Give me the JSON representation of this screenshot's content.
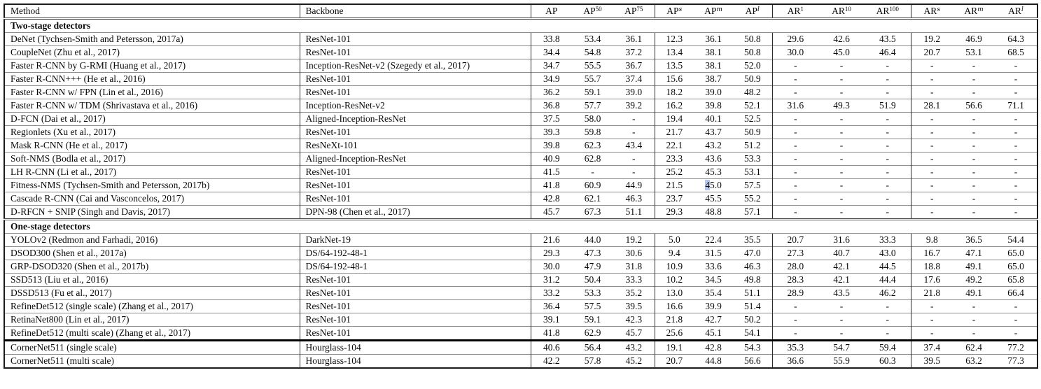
{
  "table": {
    "columns": [
      {
        "key": "method",
        "label": "Method",
        "sup": "",
        "align": "left"
      },
      {
        "key": "backbone",
        "label": "Backbone",
        "sup": "",
        "align": "left"
      },
      {
        "key": "ap",
        "label": "AP",
        "sup": ""
      },
      {
        "key": "ap50",
        "label": "AP",
        "sup": "50"
      },
      {
        "key": "ap75",
        "label": "AP",
        "sup": "75"
      },
      {
        "key": "ap-s",
        "label": "AP",
        "sup": "s"
      },
      {
        "key": "ap-m",
        "label": "AP",
        "sup": "m"
      },
      {
        "key": "ap-l",
        "label": "AP",
        "sup": "l"
      },
      {
        "key": "ar1",
        "label": "AR",
        "sup": "1"
      },
      {
        "key": "ar10",
        "label": "AR",
        "sup": "10"
      },
      {
        "key": "ar100",
        "label": "AR",
        "sup": "100"
      },
      {
        "key": "ar-s",
        "label": "AR",
        "sup": "s"
      },
      {
        "key": "ar-m",
        "label": "AR",
        "sup": "m"
      },
      {
        "key": "ar-l",
        "label": "AR",
        "sup": "l"
      }
    ],
    "sections": [
      {
        "title": "Two-stage detectors",
        "divider": "double",
        "rows": [
          [
            "DeNet (Tychsen-Smith and Petersson, 2017a)",
            "ResNet-101",
            "33.8",
            "53.4",
            "36.1",
            "12.3",
            "36.1",
            "50.8",
            "29.6",
            "42.6",
            "43.5",
            "19.2",
            "46.9",
            "64.3"
          ],
          [
            "CoupleNet (Zhu et al., 2017)",
            "ResNet-101",
            "34.4",
            "54.8",
            "37.2",
            "13.4",
            "38.1",
            "50.8",
            "30.0",
            "45.0",
            "46.4",
            "20.7",
            "53.1",
            "68.5"
          ],
          [
            "Faster R-CNN by G-RMI (Huang et al., 2017)",
            "Inception-ResNet-v2 (Szegedy et al., 2017)",
            "34.7",
            "55.5",
            "36.7",
            "13.5",
            "38.1",
            "52.0",
            "-",
            "-",
            "-",
            "-",
            "-",
            "-"
          ],
          [
            "Faster R-CNN+++ (He et al., 2016)",
            "ResNet-101",
            "34.9",
            "55.7",
            "37.4",
            "15.6",
            "38.7",
            "50.9",
            "-",
            "-",
            "-",
            "-",
            "-",
            "-"
          ],
          [
            "Faster R-CNN w/ FPN (Lin et al., 2016)",
            "ResNet-101",
            "36.2",
            "59.1",
            "39.0",
            "18.2",
            "39.0",
            "48.2",
            "-",
            "-",
            "-",
            "-",
            "-",
            "-"
          ],
          [
            "Faster R-CNN w/ TDM (Shrivastava et al., 2016)",
            "Inception-ResNet-v2",
            "36.8",
            "57.7",
            "39.2",
            "16.2",
            "39.8",
            "52.1",
            "31.6",
            "49.3",
            "51.9",
            "28.1",
            "56.6",
            "71.1"
          ],
          [
            "D-FCN (Dai et al., 2017)",
            "Aligned-Inception-ResNet",
            "37.5",
            "58.0",
            "-",
            "19.4",
            "40.1",
            "52.5",
            "-",
            "-",
            "-",
            "-",
            "-",
            "-"
          ],
          [
            "Regionlets (Xu et al., 2017)",
            "ResNet-101",
            "39.3",
            "59.8",
            "-",
            "21.7",
            "43.7",
            "50.9",
            "-",
            "-",
            "-",
            "-",
            "-",
            "-"
          ],
          [
            "Mask R-CNN (He et al., 2017)",
            "ResNeXt-101",
            "39.8",
            "62.3",
            "43.4",
            "22.1",
            "43.2",
            "51.2",
            "-",
            "-",
            "-",
            "-",
            "-",
            "-"
          ],
          [
            "Soft-NMS (Bodla et al., 2017)",
            "Aligned-Inception-ResNet",
            "40.9",
            "62.8",
            "-",
            "23.3",
            "43.6",
            "53.3",
            "-",
            "-",
            "-",
            "-",
            "-",
            "-"
          ],
          [
            "LH R-CNN (Li et al., 2017)",
            "ResNet-101",
            "41.5",
            "-",
            "-",
            "25.2",
            "45.3",
            "53.1",
            "-",
            "-",
            "-",
            "-",
            "-",
            "-"
          ],
          [
            "Fitness-NMS (Tychsen-Smith and Petersson, 2017b)",
            "ResNet-101",
            "41.8",
            "60.9",
            "44.9",
            "21.5",
            "45.0",
            "57.5",
            "-",
            "-",
            "-",
            "-",
            "-",
            "-"
          ],
          [
            "Cascade R-CNN (Cai and Vasconcelos, 2017)",
            "ResNet-101",
            "42.8",
            "62.1",
            "46.3",
            "23.7",
            "45.5",
            "55.2",
            "-",
            "-",
            "-",
            "-",
            "-",
            "-"
          ],
          [
            "D-RFCN + SNIP (Singh and Davis, 2017)",
            "DPN-98 (Chen et al., 2017)",
            "45.7",
            "67.3",
            "51.1",
            "29.3",
            "48.8",
            "57.1",
            "-",
            "-",
            "-",
            "-",
            "-",
            "-"
          ]
        ]
      },
      {
        "title": "One-stage detectors",
        "divider": "double",
        "rows": [
          [
            "YOLOv2 (Redmon and Farhadi, 2016)",
            "DarkNet-19",
            "21.6",
            "44.0",
            "19.2",
            "5.0",
            "22.4",
            "35.5",
            "20.7",
            "31.6",
            "33.3",
            "9.8",
            "36.5",
            "54.4"
          ],
          [
            "DSOD300 (Shen et al., 2017a)",
            "DS/64-192-48-1",
            "29.3",
            "47.3",
            "30.6",
            "9.4",
            "31.5",
            "47.0",
            "27.3",
            "40.7",
            "43.0",
            "16.7",
            "47.1",
            "65.0"
          ],
          [
            "GRP-DSOD320 (Shen et al., 2017b)",
            "DS/64-192-48-1",
            "30.0",
            "47.9",
            "31.8",
            "10.9",
            "33.6",
            "46.3",
            "28.0",
            "42.1",
            "44.5",
            "18.8",
            "49.1",
            "65.0"
          ],
          [
            "SSD513 (Liu et al., 2016)",
            "ResNet-101",
            "31.2",
            "50.4",
            "33.3",
            "10.2",
            "34.5",
            "49.8",
            "28.3",
            "42.1",
            "44.4",
            "17.6",
            "49.2",
            "65.8"
          ],
          [
            "DSSD513 (Fu et al., 2017)",
            "ResNet-101",
            "33.2",
            "53.3",
            "35.2",
            "13.0",
            "35.4",
            "51.1",
            "28.9",
            "43.5",
            "46.2",
            "21.8",
            "49.1",
            "66.4"
          ],
          [
            "RefineDet512 (single scale) (Zhang et al., 2017)",
            "ResNet-101",
            "36.4",
            "57.5",
            "39.5",
            "16.6",
            "39.9",
            "51.4",
            "-",
            "-",
            "-",
            "-",
            "-",
            "-"
          ],
          [
            "RetinaNet800 (Lin et al., 2017)",
            "ResNet-101",
            "39.1",
            "59.1",
            "42.3",
            "21.8",
            "42.7",
            "50.2",
            "-",
            "-",
            "-",
            "-",
            "-",
            "-"
          ],
          [
            "RefineDet512 (multi scale) (Zhang et al., 2017)",
            "ResNet-101",
            "41.8",
            "62.9",
            "45.7",
            "25.6",
            "45.1",
            "54.1",
            "-",
            "-",
            "-",
            "-",
            "-",
            "-"
          ]
        ]
      },
      {
        "title": "",
        "divider": "thick",
        "rows": [
          [
            "CornerNet511 (single scale)",
            "Hourglass-104",
            "40.6",
            "56.4",
            "43.2",
            "19.1",
            "42.8",
            "54.3",
            "35.3",
            "54.7",
            "59.4",
            "37.4",
            "62.4",
            "77.2"
          ],
          [
            "CornerNet511 (multi scale)",
            "Hourglass-104",
            "42.2",
            "57.8",
            "45.2",
            "20.7",
            "44.8",
            "56.6",
            "36.6",
            "55.9",
            "60.3",
            "39.5",
            "63.2",
            "77.3"
          ]
        ]
      }
    ],
    "selection_artifact": {
      "section": 0,
      "row": 11,
      "cell": 6,
      "chars": 1,
      "color": "#b3c5e8"
    }
  }
}
